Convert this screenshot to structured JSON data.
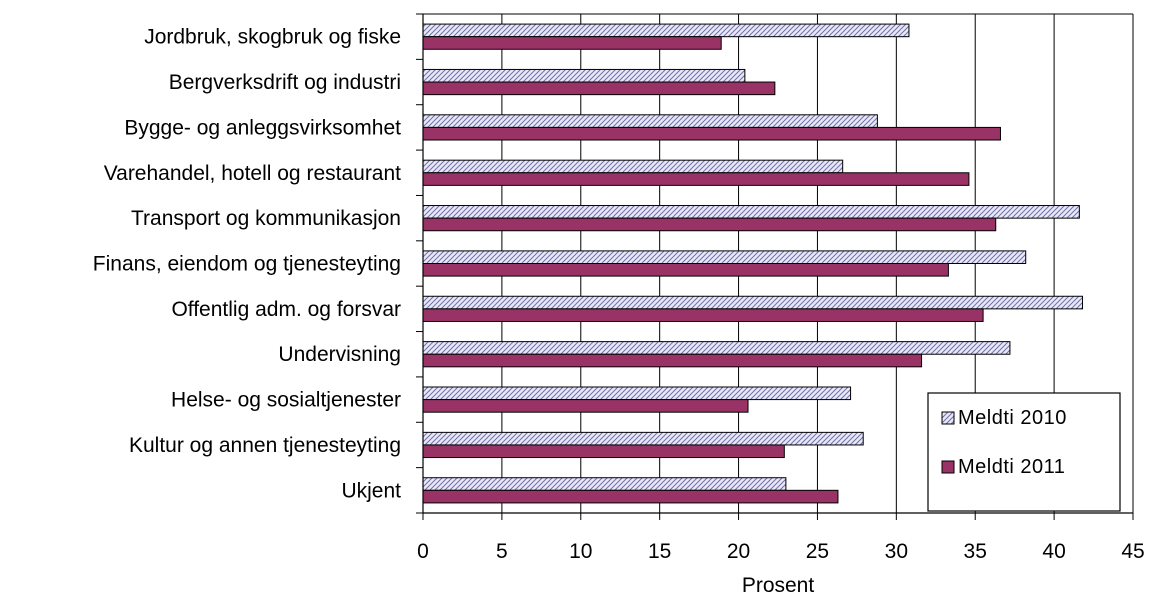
{
  "chart_data": {
    "type": "bar",
    "orientation": "horizontal",
    "categories": [
      "Jordbruk, skogbruk og fiske",
      "Bergverksdrift og industri",
      "Bygge- og anleggsvirksomhet",
      "Varehandel, hotell og restaurant",
      "Transport og kommunikasjon",
      "Finans, eiendom og tjenesteyting",
      "Offentlig adm. og forsvar",
      "Undervisning",
      "Helse- og sosialtjenester",
      "Kultur og annen tjenesteyting",
      "Ukjent"
    ],
    "series": [
      {
        "name": "Meldti 2010",
        "values": [
          30.8,
          20.4,
          28.8,
          26.6,
          41.6,
          38.2,
          41.8,
          37.2,
          27.1,
          27.9,
          23.0
        ],
        "color": "#e8e8f8",
        "pattern": "diagonal-hatch",
        "hatch_color": "#7070a8"
      },
      {
        "name": "Meldti 2011",
        "values": [
          18.9,
          22.3,
          36.6,
          34.6,
          36.3,
          33.3,
          35.5,
          31.6,
          20.6,
          22.9,
          26.3
        ],
        "color": "#993366"
      }
    ],
    "xlabel": "Prosent",
    "ylabel": "",
    "title": "",
    "xlim": [
      0,
      45
    ],
    "xticks": [
      0,
      5,
      10,
      15,
      20,
      25,
      30,
      35,
      40,
      45
    ],
    "grid": "vertical-major",
    "legend_position": "bottom-right"
  }
}
